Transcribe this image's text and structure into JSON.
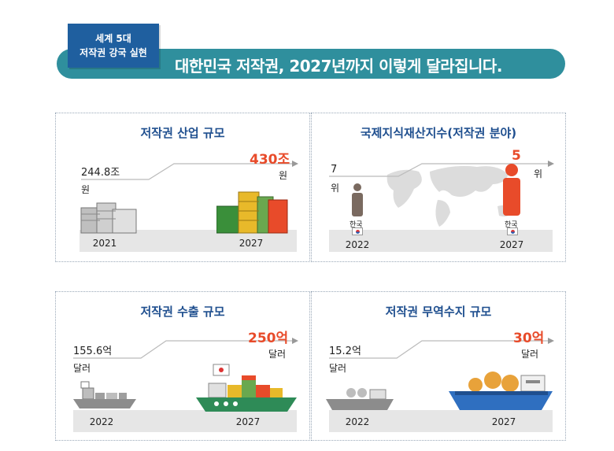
{
  "header": {
    "tag_line1": "세계 5대",
    "tag_line2": "저작권 강국 실현",
    "title": "대한민국 저작권, 2027년까지 이렇게 달라집니다."
  },
  "panels": {
    "industry": {
      "title": "저작권 산업 규모",
      "start_value": "244.8조",
      "start_unit": "원",
      "end_value": "430조",
      "end_unit": "원",
      "start_year": "2021",
      "end_year": "2027"
    },
    "ip_index": {
      "title": "국제지식재산지수(저작권 분야)",
      "start_value": "7",
      "start_unit": "위",
      "end_value": "5",
      "end_unit": "위",
      "start_country": "한국",
      "end_country": "한국",
      "start_year": "2022",
      "end_year": "2027"
    },
    "export": {
      "title": "저작권 수출 규모",
      "start_value": "155.6억",
      "start_unit": "달러",
      "end_value": "250억",
      "end_unit": "달러",
      "start_year": "2022",
      "end_year": "2027"
    },
    "trade": {
      "title": "저작권 무역수지 규모",
      "start_value": "15.2억",
      "start_unit": "달러",
      "end_value": "30억",
      "end_unit": "달러",
      "start_year": "2022",
      "end_year": "2027"
    }
  },
  "colors": {
    "banner": "#2f8f9d",
    "tag": "#1f5f9f",
    "highlight": "#e84b2a",
    "panel_title": "#1f4f8f",
    "ship_green": "#2e8b57",
    "ship_blue": "#2f6fc0"
  }
}
